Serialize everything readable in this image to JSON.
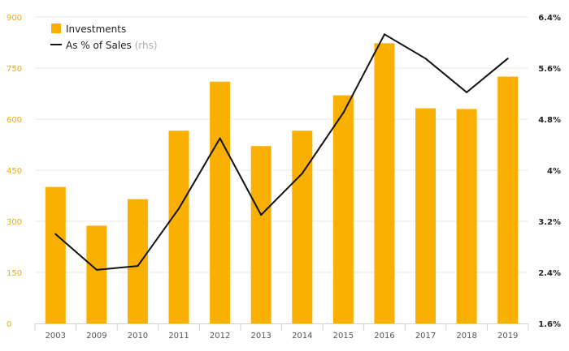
{
  "chart_data": {
    "type": "bar",
    "categories": [
      "2003",
      "2009",
      "2010",
      "2011",
      "2012",
      "2013",
      "2014",
      "2015",
      "2016",
      "2017",
      "2018",
      "2019"
    ],
    "series": [
      {
        "name": "Investments",
        "type": "bar",
        "axis": "left",
        "color": "#f9b000",
        "values": [
          401,
          287,
          365,
          566,
          710,
          521,
          566,
          670,
          823,
          632,
          630,
          725
        ]
      },
      {
        "name": "As % of Sales",
        "type": "line",
        "axis": "right",
        "color": "#111111",
        "values": [
          3.0,
          2.44,
          2.5,
          3.4,
          4.5,
          3.3,
          3.95,
          4.9,
          6.13,
          5.75,
          5.22,
          5.75
        ]
      }
    ],
    "legend": {
      "position": "top-left",
      "items": [
        {
          "label": "Investments",
          "suffix": ""
        },
        {
          "label": "As % of Sales",
          "suffix": " (rhs)"
        }
      ]
    },
    "y_left": {
      "ylim": [
        0,
        900
      ],
      "ticks": [
        0,
        150,
        300,
        450,
        600,
        750,
        900
      ],
      "tick_labels": [
        "0",
        "150",
        "300",
        "450",
        "600",
        "750",
        "900"
      ],
      "color": "#f5a800"
    },
    "y_right": {
      "ylim": [
        1.6,
        6.4
      ],
      "ticks": [
        1.6,
        2.4,
        3.2,
        4.0,
        4.8,
        5.6,
        6.4
      ],
      "tick_labels": [
        "1.6%",
        "2.4%",
        "3.2%",
        "4%",
        "4.8%",
        "5.6%",
        "6.4%"
      ]
    },
    "grid": true,
    "title": "",
    "xlabel": "",
    "ylabel": ""
  }
}
